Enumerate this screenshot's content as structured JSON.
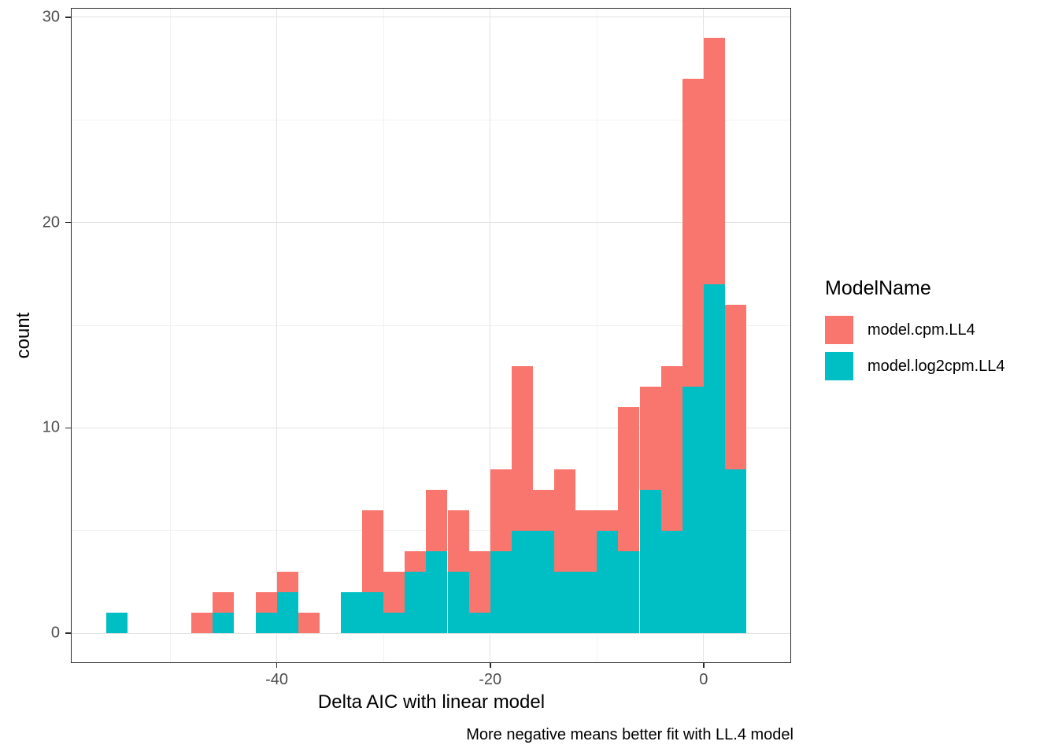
{
  "legend": {
    "title": "ModelName",
    "items": [
      {
        "label": "model.cpm.LL4",
        "color": "#F8766D"
      },
      {
        "label": "model.log2cpm.LL4",
        "color": "#00BFC4"
      }
    ]
  },
  "chart_data": {
    "type": "bar",
    "subtype": "overlaid-histogram",
    "title": "",
    "xlabel": "Delta AIC with linear model",
    "ylabel": "count",
    "caption": "More negative means better fit with LL.4 model",
    "xlim": [
      -59,
      8
    ],
    "ylim": [
      0,
      30
    ],
    "x_ticks": [
      -40,
      -20,
      0
    ],
    "y_ticks": [
      0,
      10,
      20,
      30
    ],
    "x_minor_ticks": [
      -50,
      -30,
      -10
    ],
    "y_minor_ticks": [
      5,
      15,
      25
    ],
    "grid": true,
    "legend_position": "right",
    "bin_width": 2,
    "bin_edges_left": [
      -56,
      -48,
      -46,
      -42,
      -40,
      -38,
      -34,
      -32,
      -30,
      -28,
      -26,
      -24,
      -22,
      -20,
      -18,
      -16,
      -14,
      -12,
      -10,
      -8,
      -6,
      -4,
      -2,
      0,
      2
    ],
    "series": [
      {
        "name": "model.cpm.LL4",
        "color": "#F8766D",
        "values": [
          0,
          1,
          2,
          2,
          3,
          1,
          0,
          6,
          3,
          4,
          7,
          6,
          4,
          8,
          13,
          7,
          8,
          6,
          6,
          11,
          12,
          13,
          27,
          29,
          16
        ]
      },
      {
        "name": "model.log2cpm.LL4",
        "color": "#00BFC4",
        "values": [
          1,
          0,
          1,
          1,
          2,
          0,
          2,
          2,
          1,
          3,
          4,
          3,
          1,
          4,
          5,
          5,
          3,
          3,
          5,
          4,
          7,
          5,
          12,
          17,
          8
        ]
      }
    ]
  }
}
